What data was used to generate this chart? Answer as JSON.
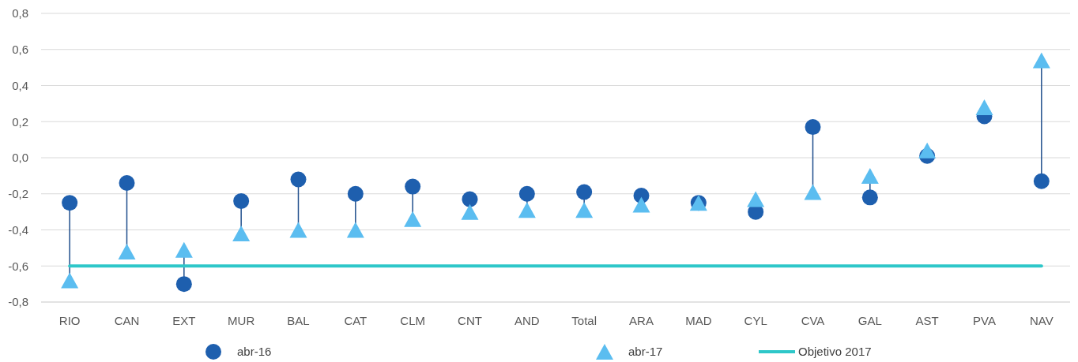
{
  "chart_data": {
    "type": "scatter",
    "categories": [
      "RIO",
      "CAN",
      "EXT",
      "MUR",
      "BAL",
      "CAT",
      "CLM",
      "CNT",
      "AND",
      "Total",
      "ARA",
      "MAD",
      "CYL",
      "CVA",
      "GAL",
      "AST",
      "PVA",
      "NAV"
    ],
    "series": [
      {
        "name": "abr-16",
        "marker": "circle",
        "color": "#1e5fae",
        "values": [
          -0.25,
          -0.14,
          -0.7,
          -0.24,
          -0.12,
          -0.2,
          -0.16,
          -0.23,
          -0.2,
          -0.19,
          -0.21,
          -0.25,
          -0.3,
          0.17,
          -0.22,
          0.01,
          0.23,
          -0.13
        ]
      },
      {
        "name": "abr-17",
        "marker": "triangle",
        "color": "#5bbdf0",
        "values": [
          -0.68,
          -0.52,
          -0.51,
          -0.42,
          -0.4,
          -0.4,
          -0.34,
          -0.3,
          -0.29,
          -0.29,
          -0.26,
          -0.25,
          -0.23,
          -0.19,
          -0.1,
          0.04,
          0.28,
          0.54
        ]
      },
      {
        "name": "Objetivo 2017",
        "type": "line",
        "marker": "none",
        "color": "#2ec7c9",
        "values": [
          -0.6,
          -0.6,
          -0.6,
          -0.6,
          -0.6,
          -0.6,
          -0.6,
          -0.6,
          -0.6,
          -0.6,
          -0.6,
          -0.6,
          -0.6,
          -0.6,
          -0.6,
          -0.6,
          -0.6,
          -0.6
        ]
      }
    ],
    "ylim": [
      -0.8,
      0.8
    ],
    "yticks": [
      {
        "value": -0.8,
        "label": "-0,8"
      },
      {
        "value": -0.6,
        "label": "-0,6"
      },
      {
        "value": -0.4,
        "label": "-0,4"
      },
      {
        "value": -0.2,
        "label": "-0,2"
      },
      {
        "value": 0,
        "label": "0,0"
      },
      {
        "value": 0.2,
        "label": "0,2"
      },
      {
        "value": 0.4,
        "label": "0,4"
      },
      {
        "value": 0.6,
        "label": "0,6"
      },
      {
        "value": 0.8,
        "label": "0,8"
      }
    ],
    "grid": "y",
    "legend": "bottom"
  }
}
